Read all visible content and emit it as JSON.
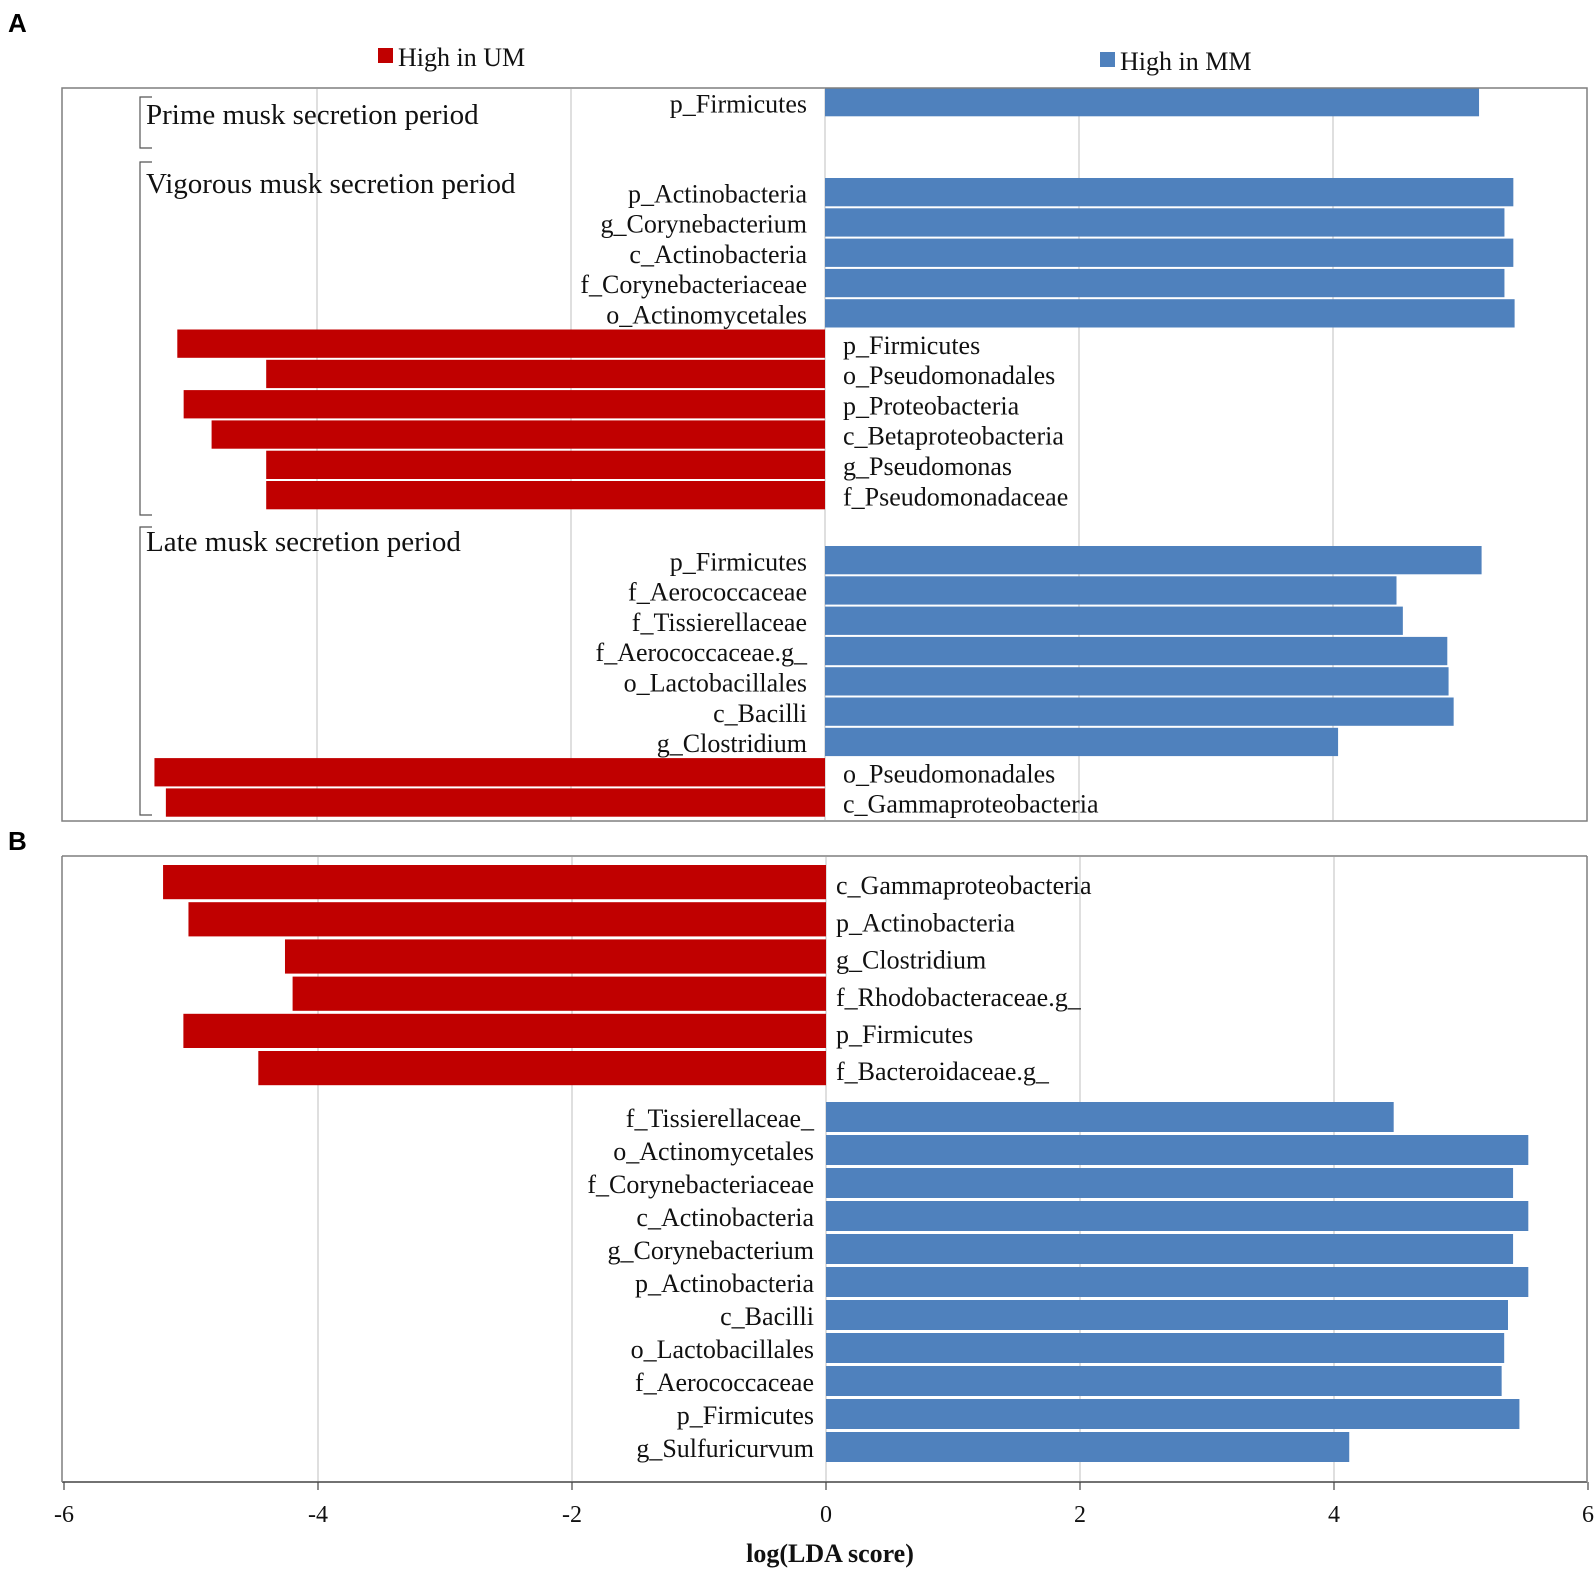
{
  "colors": {
    "um": "#C00000",
    "mm": "#4F81BD",
    "grid": "#BFBFBF",
    "frame": "#7F7F7F"
  },
  "legend": {
    "um_label": "High in UM",
    "mm_label": "High in MM"
  },
  "chart_data": [
    {
      "type": "bar",
      "panel": "A",
      "orientation": "horizontal",
      "xlim": [
        -6,
        6
      ],
      "sections": [
        {
          "title": "Prime musk secretion period",
          "bars": [
            {
              "label": "p_Firmicutes",
              "value": 5.15
            }
          ]
        },
        {
          "title": "Vigorous musk secretion period",
          "bars": [
            {
              "label": "p_Actinobacteria",
              "value": 5.42
            },
            {
              "label": "g_Corynebacterium",
              "value": 5.35
            },
            {
              "label": "c_Actinobacteria",
              "value": 5.42
            },
            {
              "label": "f_Corynebacteriaceae",
              "value": 5.35
            },
            {
              "label": "o_Actinomycetales",
              "value": 5.43
            },
            {
              "label": "p_Firmicutes",
              "value": -5.1
            },
            {
              "label": "o_Pseudomonadales",
              "value": -4.4
            },
            {
              "label": "p_Proteobacteria",
              "value": -5.05
            },
            {
              "label": "c_Betaproteobacteria",
              "value": -4.83
            },
            {
              "label": "g_Pseudomonas",
              "value": -4.4
            },
            {
              "label": "f_Pseudomonadaceae",
              "value": -4.4
            }
          ]
        },
        {
          "title": "Late musk secretion period",
          "bars": [
            {
              "label": "p_Firmicutes",
              "value": 5.17
            },
            {
              "label": "f_Aerococcaceae",
              "value": 4.5
            },
            {
              "label": "f_Tissierellaceae",
              "value": 4.55
            },
            {
              "label": "f_Aerococcaceae.g_",
              "value": 4.9
            },
            {
              "label": "o_Lactobacillales",
              "value": 4.91
            },
            {
              "label": "c_Bacilli",
              "value": 4.95
            },
            {
              "label": "g_Clostridium",
              "value": 4.04
            },
            {
              "label": "o_Pseudomonadales",
              "value": -5.28
            },
            {
              "label": "c_Gammaproteobacteria",
              "value": -5.19
            }
          ]
        }
      ]
    },
    {
      "type": "bar",
      "panel": "B",
      "orientation": "horizontal",
      "xlim": [
        -6,
        6
      ],
      "xticks": [
        -6,
        -4,
        -2,
        0,
        2,
        4,
        6
      ],
      "xlabel": "log(LDA score)",
      "bars": [
        {
          "label": "c_Gammaproteobacteria",
          "value": -5.22
        },
        {
          "label": "p_Actinobacteria",
          "value": -5.02
        },
        {
          "label": "g_Clostridium",
          "value": -4.26
        },
        {
          "label": "f_Rhodobacteraceae.g_",
          "value": -4.2
        },
        {
          "label": "p_Firmicutes",
          "value": -5.06
        },
        {
          "label": "f_Bacteroidaceae.g_",
          "value": -4.47
        },
        {
          "label": "f_Tissierellaceae_",
          "value": 4.47
        },
        {
          "label": "o_Actinomycetales",
          "value": 5.53
        },
        {
          "label": "f_Corynebacteriaceae",
          "value": 5.41
        },
        {
          "label": "c_Actinobacteria",
          "value": 5.53
        },
        {
          "label": "g_Corynebacterium",
          "value": 5.41
        },
        {
          "label": "p_Actinobacteria",
          "value": 5.53
        },
        {
          "label": "c_Bacilli",
          "value": 5.37
        },
        {
          "label": "o_Lactobacillales",
          "value": 5.34
        },
        {
          "label": "f_Aerococcaceae",
          "value": 5.32
        },
        {
          "label": "p_Firmicutes",
          "value": 5.46
        },
        {
          "label": "g_Sulfuricurvum",
          "value": 4.12
        }
      ]
    }
  ]
}
